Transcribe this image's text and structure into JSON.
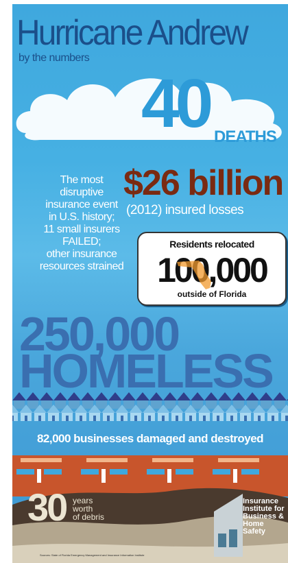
{
  "title": "Hurricane Andrew",
  "subtitle": "by the numbers",
  "deaths": {
    "value": "40",
    "label": "DEATHS"
  },
  "disruption": {
    "lines": [
      "The most",
      "disruptive",
      "insurance event",
      "in U.S. history;",
      "11 small insurers",
      "FAILED;",
      "other insurance",
      "resources strained"
    ]
  },
  "insured_losses": {
    "value": "$26 billion",
    "label": "(2012) insured losses"
  },
  "relocated": {
    "top": "Residents relocated",
    "value": "100,000",
    "bottom": "outside of Florida"
  },
  "homeless": {
    "value": "250,000",
    "label": "HOMELESS"
  },
  "businesses": "82,000 businesses damaged and destroyed",
  "debris": {
    "value": "30",
    "lines": [
      "years",
      "worth",
      "of debris"
    ]
  },
  "logo": {
    "lines": [
      "Insurance",
      "Institute for",
      "Business &",
      "Home",
      "Safety"
    ]
  },
  "sources": "Sources: State of Florida Emergency Management and Insurance Information Institute",
  "colors": {
    "title": "#1b4f8a",
    "deaths": "#2d9bd8",
    "billion": "#7a2a12",
    "homeless": "#3a6fb0",
    "shops": "#c8552c",
    "sky": "#46b0e3"
  }
}
